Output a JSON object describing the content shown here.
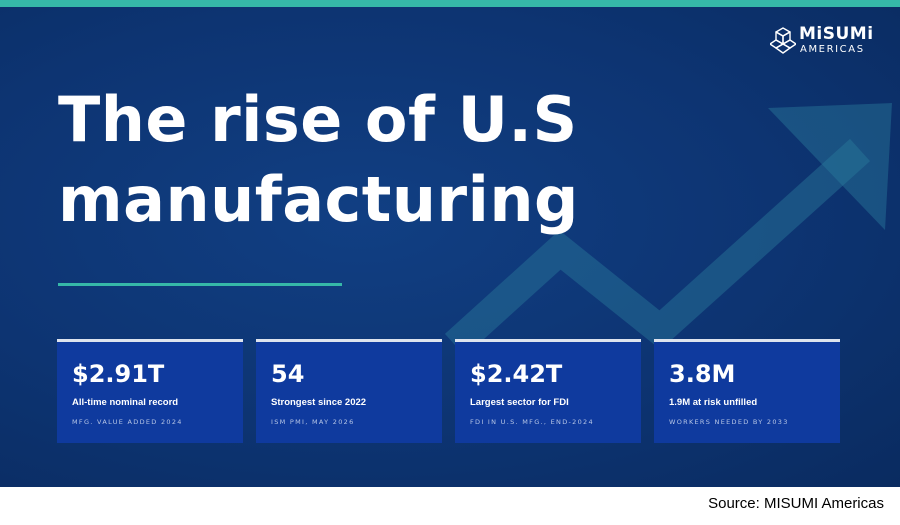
{
  "brand": {
    "name": "MiSUMi",
    "region": "AMERICAS",
    "accent_color": "#36b8a8",
    "background_color": "#0d3472",
    "card_color": "#0f3a9e",
    "logo_icon": "cube-cluster-icon"
  },
  "headline": {
    "line1": "The rise of U.S",
    "line2": "manufacturing"
  },
  "stats": [
    {
      "value": "$2.91T",
      "label": "All-time nominal record",
      "source": "MFG. VALUE ADDED 2024"
    },
    {
      "value": "54",
      "label": "Strongest since 2022",
      "source": "ISM PMI, MAY 2026"
    },
    {
      "value": "$2.42T",
      "label": "Largest sector for FDI",
      "source": "FDI IN U.S. MFG., END-2024"
    },
    {
      "value": "3.8M",
      "label": "1.9M at risk unfilled",
      "source": "WORKERS NEEDED BY 2033"
    }
  ],
  "footer": {
    "source_note": "Source: MISUMI Americas"
  }
}
